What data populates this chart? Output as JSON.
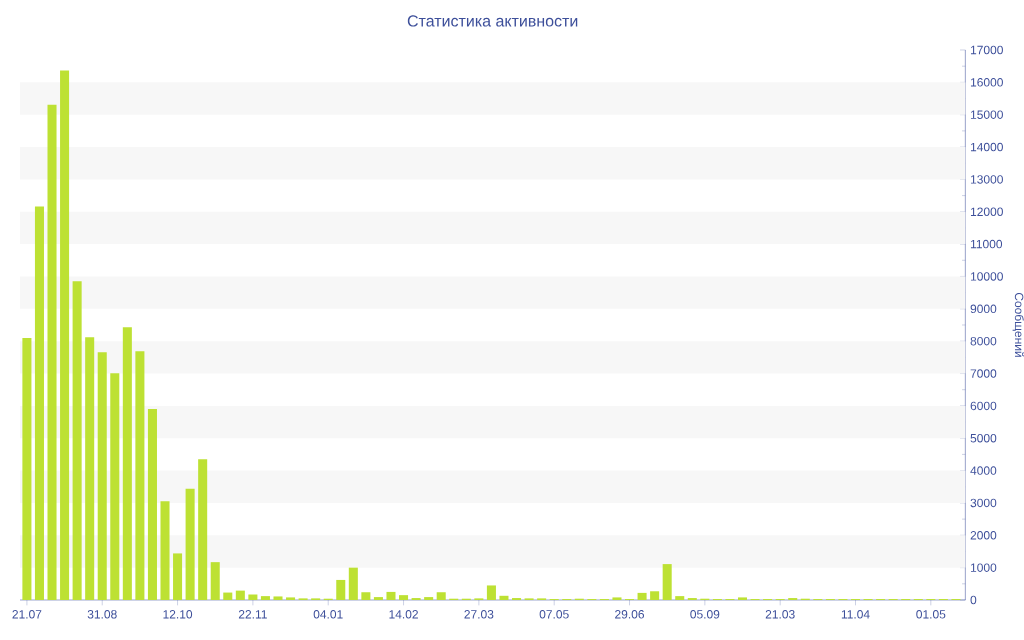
{
  "chart_data": {
    "type": "bar",
    "title": "Статистика активности",
    "ylabel": "Сообщений",
    "categories": [
      "21.07",
      null,
      null,
      null,
      null,
      null,
      "31.08",
      null,
      null,
      null,
      null,
      null,
      "12.10",
      null,
      null,
      null,
      null,
      null,
      "22.11",
      null,
      null,
      null,
      null,
      null,
      "04.01",
      null,
      null,
      null,
      null,
      null,
      "14.02",
      null,
      null,
      null,
      null,
      null,
      "27.03",
      null,
      null,
      null,
      null,
      null,
      "07.05",
      null,
      null,
      null,
      null,
      null,
      "29.06",
      null,
      null,
      null,
      null,
      null,
      "05.09",
      null,
      null,
      null,
      null,
      null,
      "21.03",
      null,
      null,
      null,
      null,
      null,
      "11.04",
      null,
      null,
      null,
      null,
      null,
      "01.05",
      null,
      null
    ],
    "values": [
      8100,
      12160,
      15310,
      16370,
      9850,
      8120,
      7660,
      7010,
      8430,
      7690,
      5900,
      3050,
      1440,
      3440,
      4350,
      1170,
      230,
      290,
      170,
      120,
      110,
      80,
      50,
      50,
      40,
      620,
      1000,
      240,
      90,
      250,
      150,
      60,
      90,
      240,
      40,
      40,
      50,
      450,
      130,
      60,
      50,
      50,
      30,
      30,
      40,
      30,
      30,
      80,
      30,
      220,
      270,
      1110,
      120,
      60,
      40,
      30,
      30,
      80,
      30,
      30,
      30,
      60,
      40,
      30,
      30,
      30,
      30,
      30,
      30,
      30,
      30,
      30,
      30,
      30,
      30
    ],
    "color": "#bde133",
    "ylim": [
      0,
      17000
    ],
    "yticks": [
      0,
      1000,
      2000,
      3000,
      4000,
      5000,
      6000,
      7000,
      8000,
      9000,
      10000,
      11000,
      12000,
      13000,
      14000,
      15000,
      16000,
      17000
    ],
    "bands": [
      {
        "axis": "y",
        "from": 1000,
        "to": 2000,
        "color": "#f7f7f7"
      },
      {
        "axis": "y",
        "from": 3000,
        "to": 4000,
        "color": "#f7f7f7"
      },
      {
        "axis": "y",
        "from": 5000,
        "to": 6000,
        "color": "#f7f7f7"
      },
      {
        "axis": "y",
        "from": 7000,
        "to": 8000,
        "color": "#f7f7f7"
      },
      {
        "axis": "y",
        "from": 9000,
        "to": 10000,
        "color": "#f7f7f7"
      },
      {
        "axis": "y",
        "from": 11000,
        "to": 12000,
        "color": "#f7f7f7"
      },
      {
        "axis": "y",
        "from": 13000,
        "to": 14000,
        "color": "#f7f7f7"
      },
      {
        "axis": "y",
        "from": 15000,
        "to": 16000,
        "color": "#f7f7f7"
      }
    ]
  }
}
